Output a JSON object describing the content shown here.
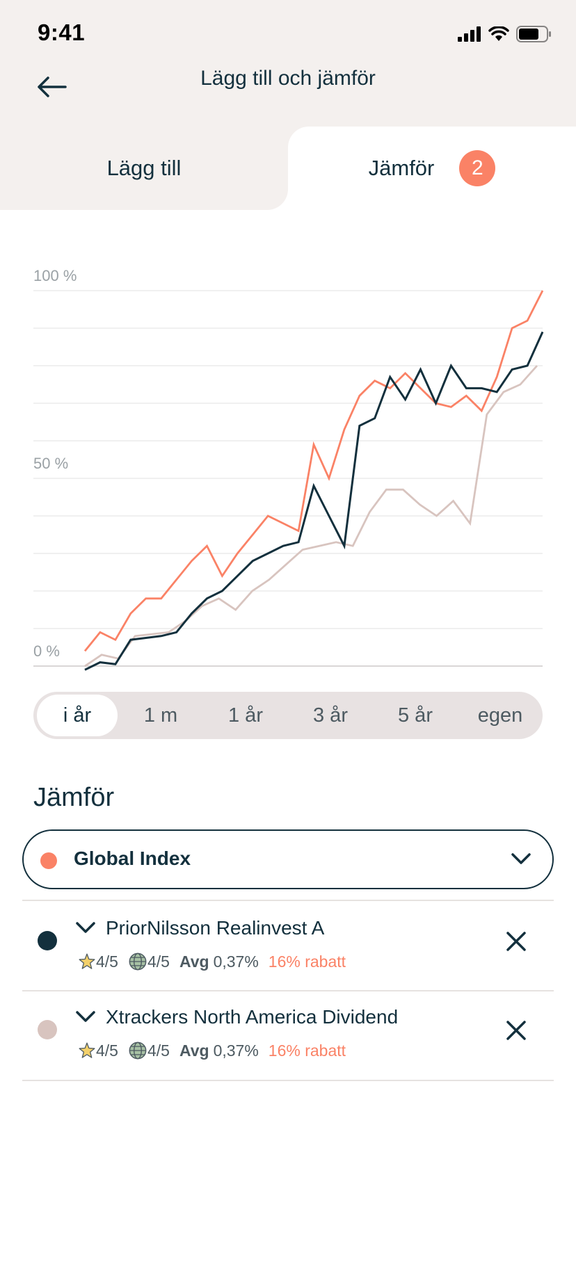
{
  "status_bar": {
    "time": "9:41"
  },
  "header": {
    "title": "Lägg till och jämför"
  },
  "tabs": {
    "add": {
      "label": "Lägg till"
    },
    "compare": {
      "label": "Jämför",
      "badge": "2"
    }
  },
  "chart_data": {
    "type": "line",
    "ytick_labels": [
      "100 %",
      "50 %",
      "0 %"
    ],
    "ylim": [
      0,
      100
    ],
    "grid": true,
    "series": [
      {
        "color": "#fa8266",
        "values": [
          4,
          9,
          7,
          14,
          18,
          18,
          23,
          28,
          32,
          24,
          30,
          35,
          40,
          38,
          36,
          59,
          50,
          63,
          72,
          76,
          74,
          78,
          74,
          70,
          69,
          72,
          68,
          77,
          90,
          92,
          100
        ]
      },
      {
        "color": "#13303d",
        "values": [
          -1,
          1,
          0.5,
          7,
          7.5,
          8,
          9,
          14,
          18,
          20,
          24,
          28,
          30,
          32,
          33,
          48,
          40,
          32,
          64,
          66,
          77,
          71,
          79,
          70,
          80,
          74,
          74,
          73,
          79,
          80,
          89
        ]
      },
      {
        "color": "#d8c4bf",
        "values": [
          0,
          3,
          2,
          8,
          8.5,
          9,
          12,
          16,
          18,
          15,
          20,
          23,
          27,
          31,
          32,
          33,
          32,
          41,
          47,
          47,
          43,
          40,
          44,
          38,
          67,
          73,
          75,
          80
        ]
      }
    ]
  },
  "range": {
    "options": [
      "i år",
      "1 m",
      "1 år",
      "3 år",
      "5 år",
      "egen"
    ],
    "selected": "i år"
  },
  "compare": {
    "title": "Jämför",
    "index": {
      "name": "Global Index",
      "color": "#fa8266"
    },
    "funds": [
      {
        "name": "PriorNilsson Realinvest A",
        "color": "#13303d",
        "rating": "4/5",
        "sustainability": "4/5",
        "fee_label": "Avg",
        "fee": "0,37%",
        "discount": "16% rabatt"
      },
      {
        "name": "Xtrackers North America Dividend",
        "color": "#d8c4bf",
        "rating": "4/5",
        "sustainability": "4/5",
        "fee_label": "Avg",
        "fee": "0,37%",
        "discount": "16% rabatt"
      }
    ]
  }
}
